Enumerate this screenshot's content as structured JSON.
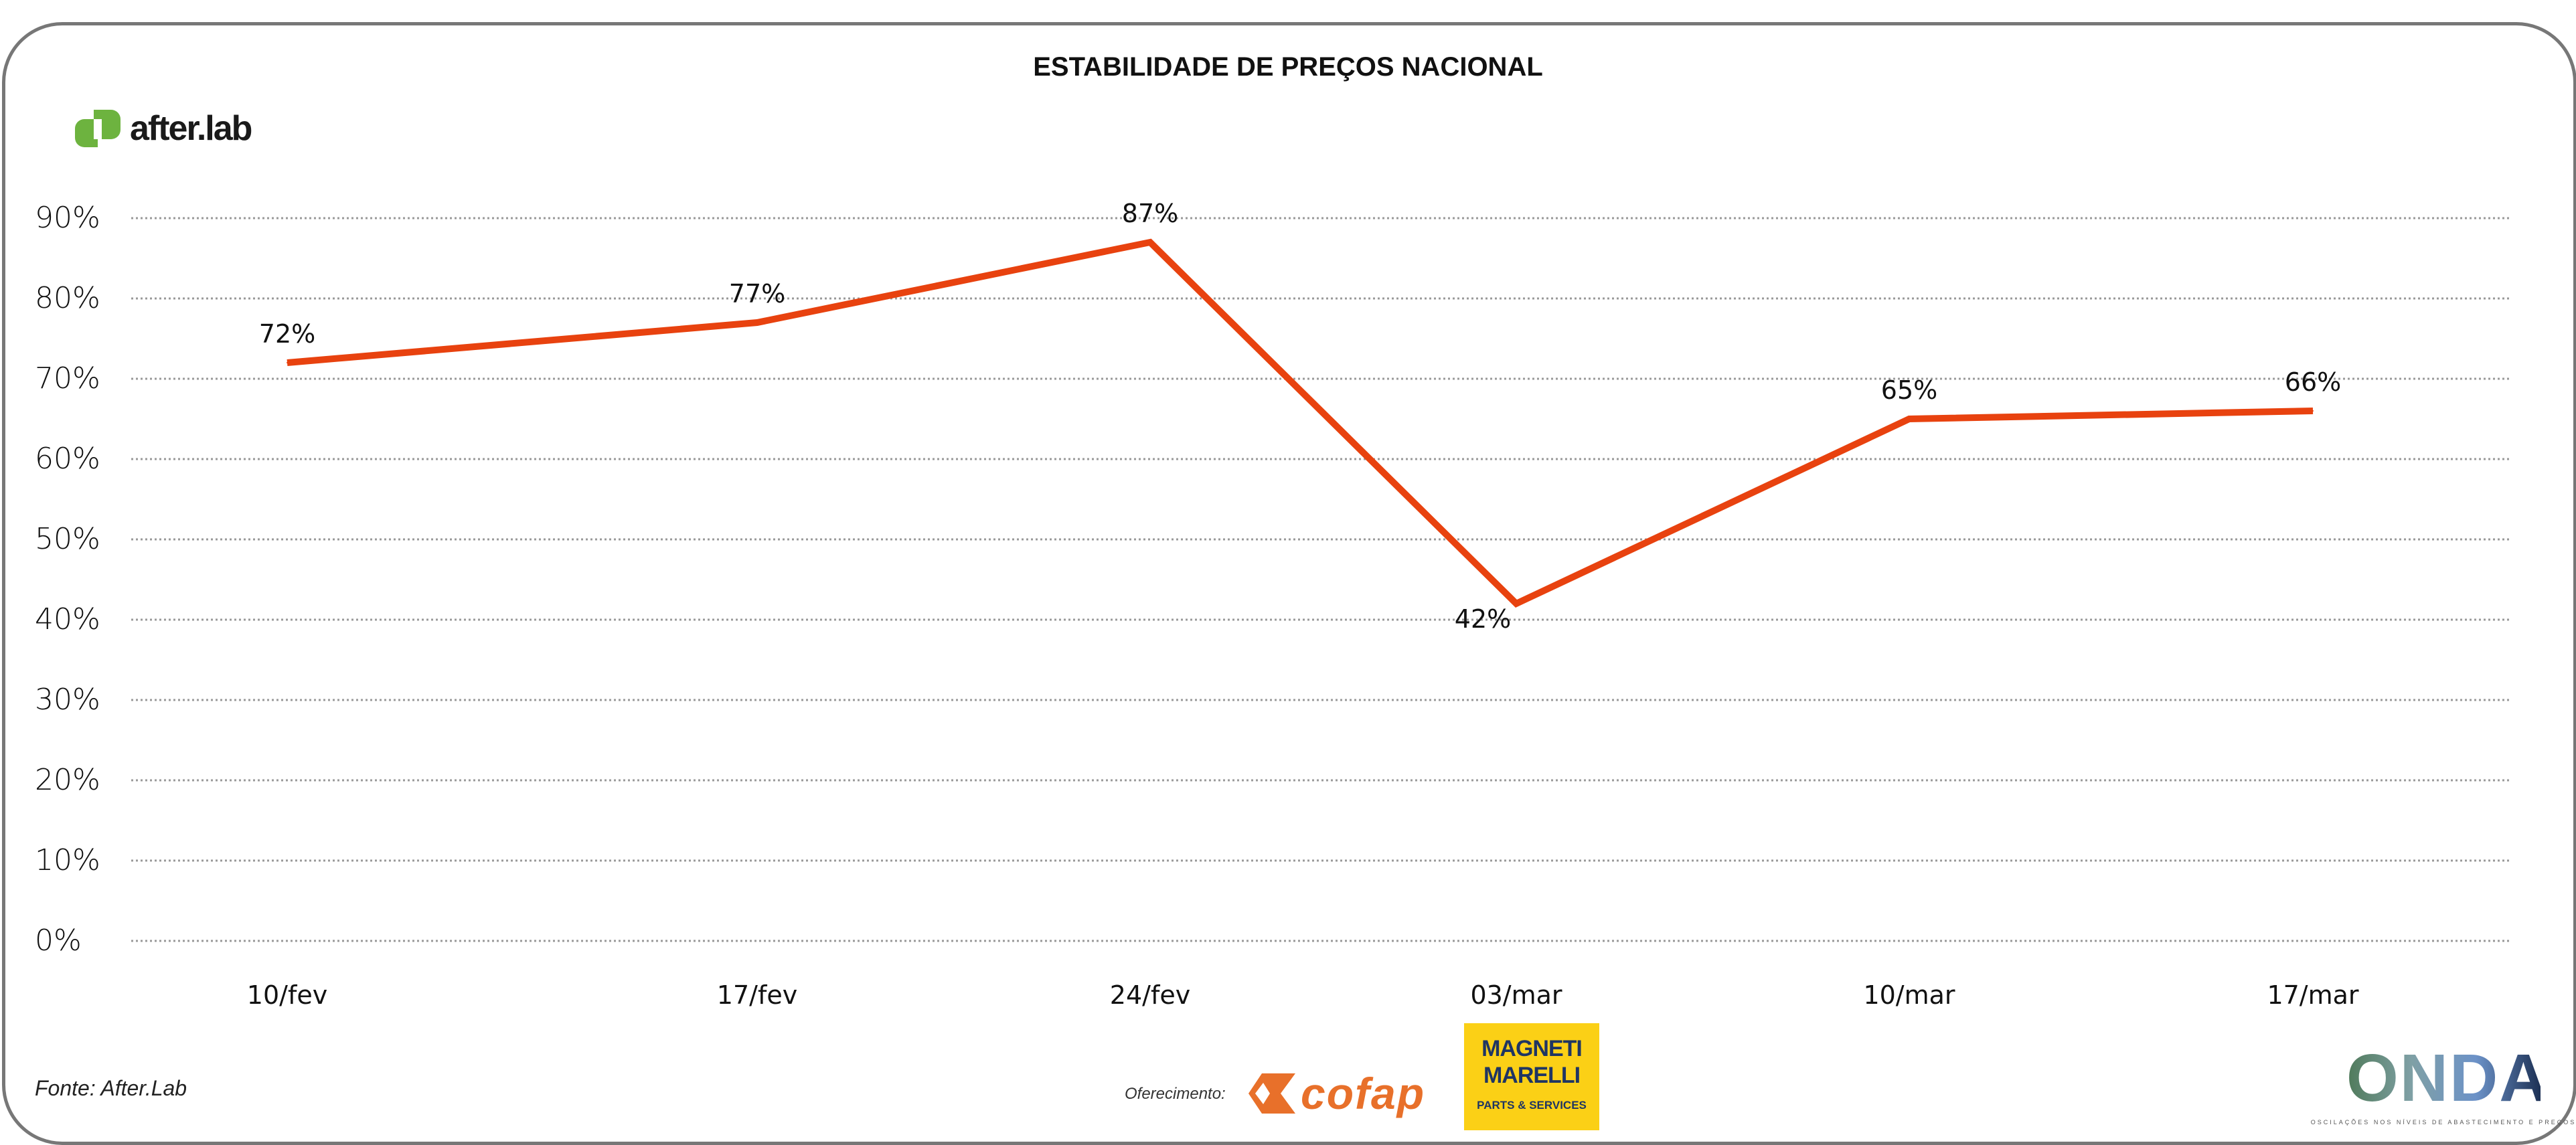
{
  "brand": {
    "name": "after.lab",
    "color": "#6DB33F"
  },
  "chart_data": {
    "type": "line",
    "title": "ESTABILIDADE DE PREÇOS NACIONAL",
    "categories": [
      "10/fev",
      "17/fev",
      "24/fev",
      "03/mar",
      "10/mar",
      "17/mar"
    ],
    "values": [
      72,
      77,
      87,
      42,
      65,
      66
    ],
    "data_labels": [
      "72%",
      "77%",
      "87%",
      "42%",
      "65%",
      "66%"
    ],
    "ylim": [
      0,
      90
    ],
    "yticks": [
      0,
      10,
      20,
      30,
      40,
      50,
      60,
      70,
      80,
      90
    ],
    "ytick_labels": [
      "0%",
      "10%",
      "20%",
      "30%",
      "40%",
      "50%",
      "60%",
      "70%",
      "80%",
      "90%"
    ],
    "grid": true,
    "line_color": "#E8420F",
    "xlabel": "",
    "ylabel": ""
  },
  "footer": {
    "source": "Fonte: After.Lab",
    "sponsor_label": "Oferecimento:",
    "sponsors": [
      {
        "name": "cofap",
        "color": "#E8702A"
      },
      {
        "name": "MAGNETI MARELLI",
        "sub": "PARTS & SERVICES",
        "color": "#FBD016"
      }
    ],
    "onda": {
      "name": "ONDA",
      "sub": "OSCILAÇÕES NOS NÍVEIS DE ABASTECIMENTO E PREÇOS"
    }
  }
}
